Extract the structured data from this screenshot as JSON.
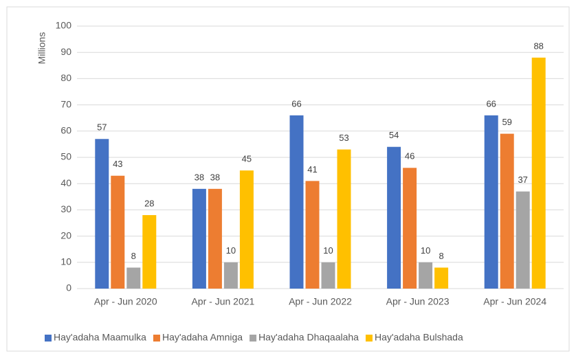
{
  "chart_data": {
    "type": "bar",
    "y_label": "Millions",
    "categories": [
      "Apr - Jun 2020",
      "Apr - Jun 2021",
      "Apr - Jun 2022",
      "Apr - Jun 2023",
      "Apr - Jun 2024"
    ],
    "series": [
      {
        "name": "Hay'adaha Maamulka",
        "color": "#4472c4",
        "values": [
          57,
          38,
          66,
          54,
          66
        ]
      },
      {
        "name": "Hay'adaha Amniga",
        "color": "#ed7d31",
        "values": [
          43,
          38,
          41,
          46,
          59
        ]
      },
      {
        "name": "Hay'adaha Dhaqaalaha",
        "color": "#a5a5a5",
        "values": [
          8,
          10,
          10,
          10,
          37
        ]
      },
      {
        "name": "Hay'adaha Bulshada",
        "color": "#ffc000",
        "values": [
          28,
          45,
          53,
          8,
          88
        ]
      }
    ],
    "ylim": [
      0,
      100
    ],
    "yticks": [
      0,
      10,
      20,
      30,
      40,
      50,
      60,
      70,
      80,
      90,
      100
    ],
    "grid": true,
    "legend": "bottom"
  }
}
